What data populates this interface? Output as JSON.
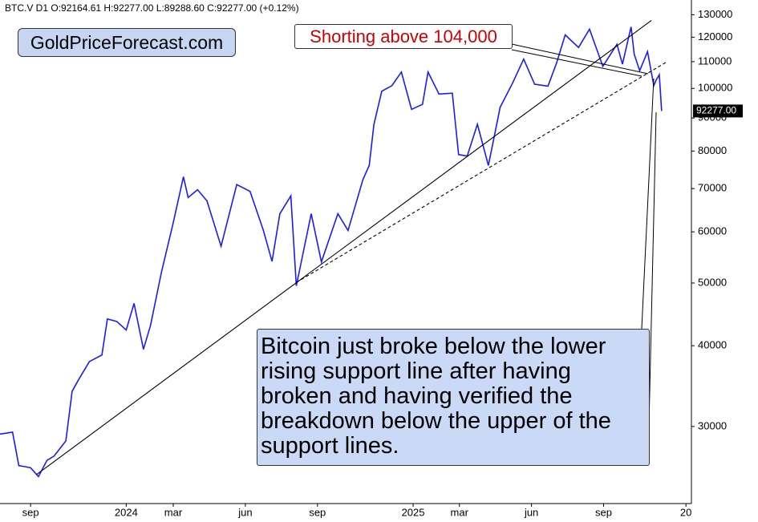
{
  "chart_data": {
    "type": "line",
    "header": "BTC.V  D1  O:92164.61  H:92277.00  L:89288.60  C:92277.00  (+0.12%)",
    "watermark": "GoldPriceForecast.com",
    "annotations": [
      "Shorting above 104,000",
      "Bitcoin just broke below the lower rising support line after having broken and having verified the breakdown below the upper of the support lines."
    ],
    "log_scale": true,
    "grid": false,
    "xlim": [
      0,
      882
    ],
    "xticks": [
      {
        "value": 39,
        "label": "sep"
      },
      {
        "value": 161,
        "label": "2024"
      },
      {
        "value": 221,
        "label": "mar"
      },
      {
        "value": 313,
        "label": "jun"
      },
      {
        "value": 405,
        "label": "sep"
      },
      {
        "value": 527,
        "label": "2025"
      },
      {
        "value": 586,
        "label": "mar"
      },
      {
        "value": 678,
        "label": "jun"
      },
      {
        "value": 770,
        "label": "sep"
      },
      {
        "value": 875,
        "label": "20"
      }
    ],
    "ylim": [
      22800,
      137000
    ],
    "yticks": [
      30000,
      40000,
      50000,
      60000,
      70000,
      80000,
      90000,
      100000,
      110000,
      120000,
      130000
    ],
    "last_value_label": {
      "value": 92277,
      "label": "92277.00"
    },
    "series": [
      {
        "name": "BTC.V",
        "color": "#1a1aff",
        "x": [
          0,
          8,
          16,
          24,
          32,
          39,
          49,
          60,
          69,
          84,
          92,
          100,
          114,
          130,
          137,
          149,
          161,
          171,
          183,
          192,
          206,
          221,
          234,
          240,
          252,
          264,
          282,
          302,
          319,
          336,
          347,
          357,
          371,
          378,
          397,
          410,
          431,
          444,
          463,
          471,
          477,
          487,
          500,
          512,
          525,
          539,
          546,
          560,
          577,
          585,
          596,
          609,
          623,
          638,
          654,
          668,
          682,
          699,
          710,
          721,
          738,
          752,
          769,
          787,
          794,
          805,
          809,
          816,
          826,
          834,
          837,
          841,
          844
        ],
        "values": [
          29200,
          29300,
          29400,
          26100,
          26000,
          25900,
          25100,
          26600,
          27000,
          28500,
          34000,
          35400,
          37800,
          38700,
          44000,
          43600,
          42300,
          46500,
          39500,
          43000,
          52000,
          62000,
          73000,
          67800,
          69700,
          67000,
          57000,
          71000,
          69300,
          60300,
          54000,
          64000,
          68200,
          49500,
          64000,
          53900,
          64000,
          60300,
          72300,
          76000,
          88000,
          99000,
          101000,
          106000,
          92800,
          94500,
          106000,
          98000,
          98300,
          79000,
          78600,
          88000,
          76000,
          93500,
          102000,
          111000,
          101500,
          100800,
          109500,
          121000,
          115700,
          123500,
          108200,
          117000,
          109000,
          124500,
          113000,
          106500,
          114000,
          101000,
          103000,
          105000,
          92277
        ]
      }
    ],
    "lines": [
      {
        "x": [
          47,
          831
        ],
        "values": [
          25300,
          127400
        ],
        "style": "solid"
      },
      {
        "x": [
          378,
          850
        ],
        "values": [
          50100,
          109800
        ],
        "style": "dashed"
      }
    ]
  }
}
